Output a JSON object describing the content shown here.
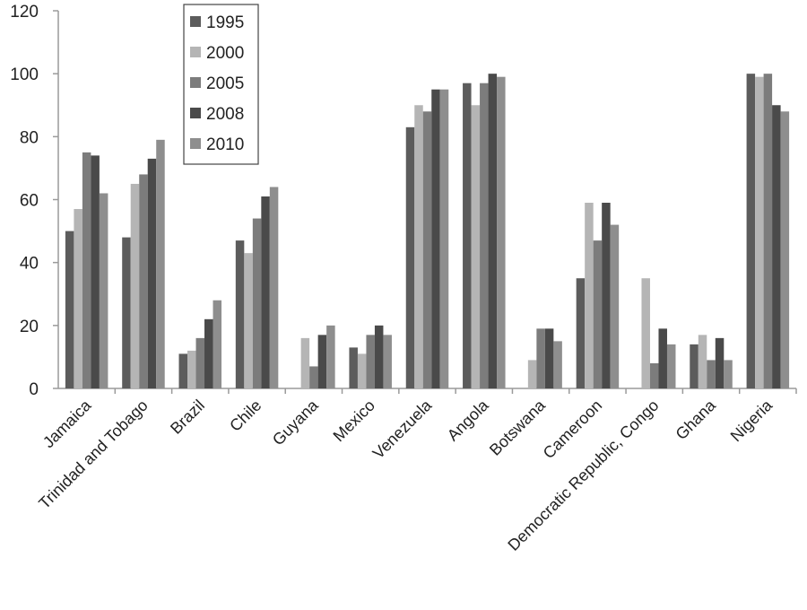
{
  "chart_data": {
    "type": "bar",
    "categories": [
      "Jamaica",
      "Trinidad and Tobago",
      "Brazil",
      "Chile",
      "Guyana",
      "Mexico",
      "Venezuela",
      "Angola",
      "Botswana",
      "Cameroon",
      "Democratic Republic, Congo",
      "Ghana",
      "Nigeria"
    ],
    "series": [
      {
        "name": "1995",
        "color": "#5c5c5c",
        "values": [
          50,
          48,
          11,
          47,
          0,
          13,
          83,
          97,
          0,
          35,
          0,
          14,
          100
        ]
      },
      {
        "name": "2000",
        "color": "#b5b5b5",
        "values": [
          57,
          65,
          12,
          43,
          16,
          11,
          90,
          90,
          9,
          59,
          35,
          17,
          99
        ]
      },
      {
        "name": "2005",
        "color": "#7c7c7c",
        "values": [
          75,
          68,
          16,
          54,
          7,
          17,
          88,
          97,
          19,
          47,
          8,
          9,
          100
        ]
      },
      {
        "name": "2008",
        "color": "#4a4a4a",
        "values": [
          74,
          73,
          22,
          61,
          17,
          20,
          95,
          100,
          19,
          59,
          19,
          16,
          90
        ]
      },
      {
        "name": "2010",
        "color": "#8e8e8e",
        "values": [
          62,
          79,
          28,
          64,
          20,
          17,
          95,
          99,
          15,
          52,
          14,
          9,
          88
        ]
      }
    ],
    "y_ticks": [
      "0",
      "20",
      "40",
      "60",
      "80",
      "100",
      "120"
    ],
    "ylim": [
      0,
      120
    ],
    "grid": false,
    "legend": "top-left inside plot"
  }
}
